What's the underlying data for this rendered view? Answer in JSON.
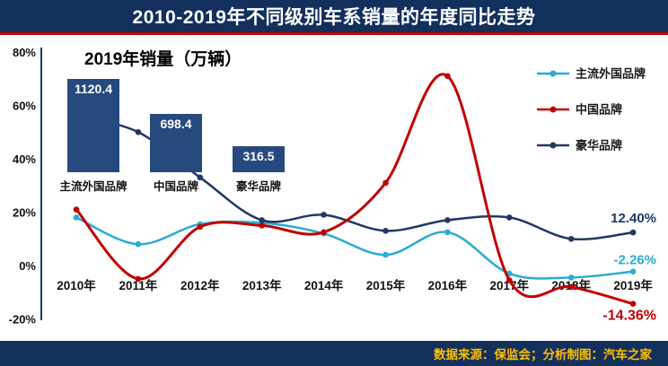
{
  "header": {
    "title": "2010-2019年不同级别车系销量的年度同比走势"
  },
  "footer": {
    "credit": "数据来源：保监会；分析制图：汽车之家"
  },
  "colors": {
    "header_bg": "#132f5c",
    "accent_red": "#c00000",
    "bar_fill": "#264a7e",
    "axis": "#1f3864",
    "text": "#111111",
    "footer_text": "#ffc000",
    "legend_text": "#1a1a1a"
  },
  "chart_data": {
    "type": "line",
    "title": "2010-2019年不同级别车系销量的年度同比走势",
    "x": [
      "2010年",
      "2011年",
      "2012年",
      "2013年",
      "2014年",
      "2015年",
      "2016年",
      "2017年",
      "2018年",
      "2019年"
    ],
    "ylim": [
      -20,
      80
    ],
    "ylabel": "",
    "xlabel": "",
    "grid": false,
    "legend_position": "right",
    "yticks": [
      {
        "label": "80%",
        "value": 80
      },
      {
        "label": "60%",
        "value": 60
      },
      {
        "label": "40%",
        "value": 40
      },
      {
        "label": "20%",
        "value": 20
      },
      {
        "label": "0%",
        "value": 0
      },
      {
        "label": "-20%",
        "value": -20
      }
    ],
    "series": [
      {
        "name": "主流外国品牌",
        "color": "#2aabd2",
        "values": [
          18,
          8,
          15.5,
          16,
          12,
          4,
          12.5,
          -3,
          -4.5,
          -2.26
        ],
        "end_label": "-2.26%"
      },
      {
        "name": "中国品牌",
        "color": "#c00000",
        "values": [
          21,
          -5,
          14.5,
          15,
          12.5,
          31,
          71,
          -5.5,
          -8,
          -14.36
        ],
        "end_label": "-14.36%"
      },
      {
        "name": "豪华品牌",
        "color": "#1f3864",
        "values": [
          56,
          50,
          33,
          17,
          19,
          13,
          17,
          18,
          10,
          12.4
        ],
        "end_label": "12.40%"
      }
    ],
    "inset": {
      "type": "bar",
      "title": "2019年销量（万辆）",
      "categories": [
        "主流外国品牌",
        "中国品牌",
        "豪华品牌"
      ],
      "values": [
        1120.4,
        698.4,
        316.5
      ]
    }
  }
}
